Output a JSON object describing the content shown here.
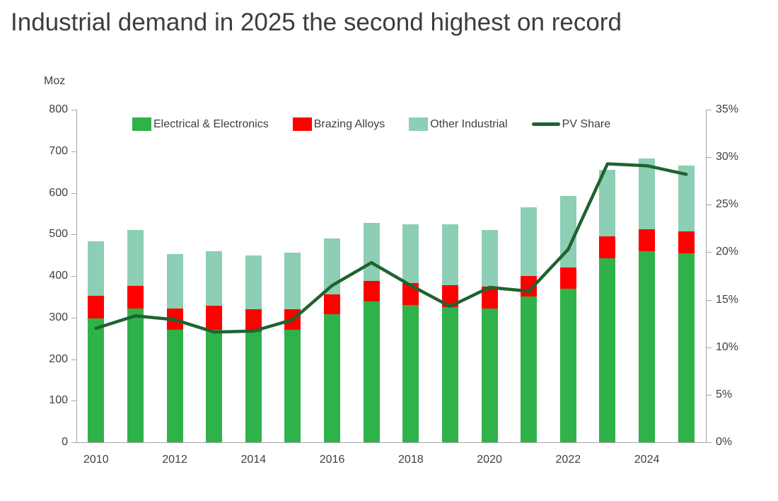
{
  "title": "Industrial demand in 2025 the second highest on record",
  "axes": {
    "left_unit_label": "Moz",
    "left_tick_labels": [
      "800",
      "700",
      "600",
      "500",
      "400",
      "300",
      "200",
      "100",
      "0"
    ],
    "right_tick_labels": [
      "35%",
      "30%",
      "25%",
      "20%",
      "15%",
      "10%",
      "5%",
      "0%"
    ],
    "x_tick_labels": [
      "2010",
      "2012",
      "2014",
      "2016",
      "2018",
      "2020",
      "2022",
      "2024"
    ]
  },
  "legend": {
    "items": [
      {
        "label": "Electrical & Electronics",
        "color": "#2fb24a",
        "shape": "rect"
      },
      {
        "label": "Brazing Alloys",
        "color": "#ff0000",
        "shape": "rect"
      },
      {
        "label": "Other Industrial",
        "color": "#8ccfb4",
        "shape": "rect"
      },
      {
        "label": "PV Share",
        "color": "#1e6330",
        "shape": "line"
      }
    ]
  },
  "colors": {
    "title_text": "#3d3d3d",
    "axis_text": "#3f3f3f",
    "axis_line": "#a6a6a6",
    "electrical": "#2fb24a",
    "brazing": "#ff0000",
    "other_industrial": "#8ccfb4",
    "pv_line": "#1e6330",
    "background": "#ffffff"
  },
  "chart_data": {
    "type": "bar",
    "subtype": "stacked-bars-with-line-overlay",
    "title": "Industrial demand in 2025 the second highest on record",
    "categories": [
      2010,
      2011,
      2012,
      2013,
      2014,
      2015,
      2016,
      2017,
      2018,
      2019,
      2020,
      2021,
      2022,
      2023,
      2024,
      2025
    ],
    "series": [
      {
        "name": "Electrical & Electronics",
        "type": "bar",
        "axis": "left",
        "color": "#2fb24a",
        "values": [
          298,
          322,
          270,
          270,
          265,
          270,
          308,
          338,
          330,
          325,
          322,
          350,
          370,
          443,
          460,
          455
        ]
      },
      {
        "name": "Brazing Alloys",
        "type": "bar",
        "axis": "left",
        "color": "#ff0000",
        "values": [
          54,
          54,
          52,
          58,
          55,
          50,
          47,
          50,
          53,
          53,
          53,
          50,
          50,
          52,
          52,
          53
        ]
      },
      {
        "name": "Other Industrial",
        "type": "bar",
        "axis": "left",
        "color": "#8ccfb4",
        "values": [
          131,
          135,
          130,
          132,
          130,
          136,
          135,
          140,
          142,
          147,
          135,
          165,
          172,
          161,
          170,
          157
        ]
      },
      {
        "name": "PV Share",
        "type": "line",
        "axis": "right",
        "color": "#1e6330",
        "values": [
          12.0,
          13.3,
          12.9,
          11.6,
          11.7,
          12.9,
          16.5,
          18.9,
          16.5,
          14.3,
          16.3,
          15.9,
          20.3,
          29.3,
          29.1,
          28.2
        ]
      }
    ],
    "bar_totals": [
      483,
      511,
      452,
      460,
      450,
      456,
      490,
      528,
      525,
      525,
      510,
      565,
      592,
      656,
      682,
      665
    ],
    "left_axis": {
      "label": "Moz",
      "min": 0,
      "max": 800,
      "step": 100
    },
    "right_axis": {
      "min": 0,
      "max": 35,
      "step": 5,
      "format": "percent"
    },
    "x_label_interval": 2,
    "grid": false,
    "legend_position": "top-inside"
  }
}
